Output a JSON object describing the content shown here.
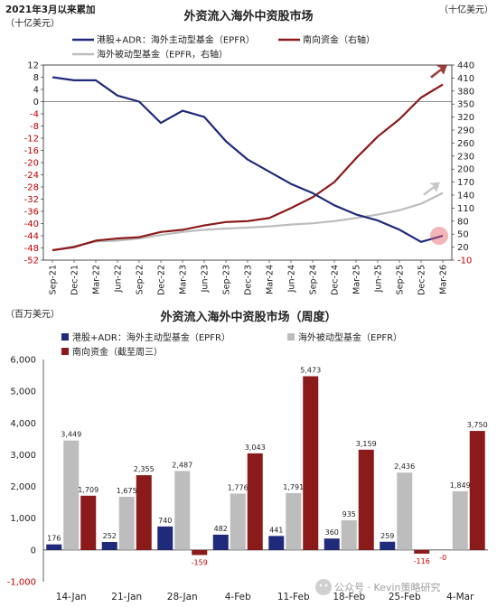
{
  "colors": {
    "navy": "#1f2a7a",
    "maroon": "#8b1a1a",
    "grey": "#bdbdbd",
    "red_text": "#c00000",
    "black": "#222222"
  },
  "top": {
    "header_left": "2021年3月以来累加",
    "unit_left": "（十亿美元）",
    "title": "外资流入海外中资股市场",
    "unit_right": "（十亿美元）",
    "legend": [
      "港股+ADR：海外主动型基金（EPFR）",
      "南向资金（右轴）",
      "海外被动型基金（EPFR，右轴）"
    ],
    "left_ticks": [
      "12",
      "8",
      "4",
      "0",
      "-4",
      "-8",
      "-12",
      "-16",
      "-20",
      "-24",
      "-28",
      "-32",
      "-36",
      "-40",
      "-44",
      "-48",
      "-52"
    ],
    "right_ticks": [
      "440",
      "410",
      "380",
      "350",
      "320",
      "290",
      "260",
      "230",
      "200",
      "170",
      "140",
      "110",
      "80",
      "50",
      "20",
      "-10"
    ],
    "x_ticks": [
      "Sep-21",
      "Dec-21",
      "Mar-22",
      "Jun-22",
      "Sep-22",
      "Dec-22",
      "Mar-23",
      "Jun-23",
      "Sep-23",
      "Dec-23",
      "Mar-24",
      "Jun-24",
      "Sep-24",
      "Dec-24",
      "Mar-25",
      "Jun-25",
      "Sep-25",
      "Dec-25",
      "Mar-26"
    ]
  },
  "bottom": {
    "unit_left": "（百万美元）",
    "title": "外资流入海外中资股市场（周度）",
    "legend": [
      "港股+ADR：海外主动型基金（EPFR）",
      "海外被动型基金（EPFR）",
      "南向资金（截至周三）"
    ],
    "y_ticks": [
      "6,000",
      "5,000",
      "4,000",
      "3,000",
      "2,000",
      "1,000",
      "0",
      "-1,000"
    ],
    "watermark": "公众号 · Kevin策略研究"
  },
  "chart_data": [
    {
      "type": "line",
      "title": "外资流入海外中资股市场",
      "x": [
        "Sep-21",
        "Dec-21",
        "Mar-22",
        "Jun-22",
        "Sep-22",
        "Dec-22",
        "Mar-23",
        "Jun-23",
        "Sep-23",
        "Dec-23",
        "Mar-24",
        "Jun-24",
        "Sep-24",
        "Dec-24",
        "Mar-25",
        "Jun-25",
        "Sep-25",
        "Dec-25",
        "Mar-26"
      ],
      "ylim_left": [
        -52,
        12
      ],
      "ylim_right": [
        -10,
        440
      ],
      "series": [
        {
          "name": "港股+ADR：海外主动型基金（EPFR）",
          "axis": "left",
          "values": [
            8,
            7,
            7,
            2,
            0,
            -7,
            -3,
            -5,
            -13,
            -19,
            -23,
            -27,
            -30,
            -34,
            -37,
            -39,
            -42,
            -46,
            -44
          ]
        },
        {
          "name": "南向资金（右轴）",
          "axis": "right",
          "values": [
            13,
            20,
            35,
            40,
            43,
            55,
            60,
            70,
            78,
            80,
            87,
            110,
            135,
            170,
            225,
            275,
            315,
            365,
            395
          ]
        },
        {
          "name": "海外被动型基金（EPFR，右轴）",
          "axis": "right",
          "values": [
            12,
            22,
            33,
            35,
            40,
            48,
            55,
            60,
            63,
            65,
            68,
            72,
            75,
            80,
            87,
            95,
            105,
            120,
            145
          ]
        }
      ]
    },
    {
      "type": "bar",
      "title": "外资流入海外中资股市场（周度）",
      "categories": [
        "14-Jan",
        "21-Jan",
        "28-Jan",
        "4-Feb",
        "11-Feb",
        "18-Feb",
        "25-Feb",
        "4-Mar"
      ],
      "ylim": [
        -1000,
        6000
      ],
      "series": [
        {
          "name": "港股+ADR：海外主动型基金（EPFR）",
          "values": [
            176,
            252,
            740,
            482,
            441,
            360,
            259,
            0
          ],
          "labels": [
            "176",
            "252",
            "740",
            "482",
            "441",
            "360",
            "259",
            "-0"
          ]
        },
        {
          "name": "海外被动型基金（EPFR）",
          "values": [
            3449,
            1675,
            2487,
            1776,
            1791,
            935,
            2436,
            1849
          ],
          "labels": [
            "3,449",
            "1,675",
            "2,487",
            "1,776",
            "1,791",
            "935",
            "2,436",
            "1,849"
          ]
        },
        {
          "name": "南向资金（截至周三）",
          "values": [
            1709,
            2355,
            -159,
            3043,
            5473,
            3159,
            -116,
            3750
          ],
          "labels": [
            "1,709",
            "2,355",
            "-159",
            "3,043",
            "5,473",
            "3,159",
            "-116",
            "3,750"
          ]
        }
      ]
    }
  ]
}
